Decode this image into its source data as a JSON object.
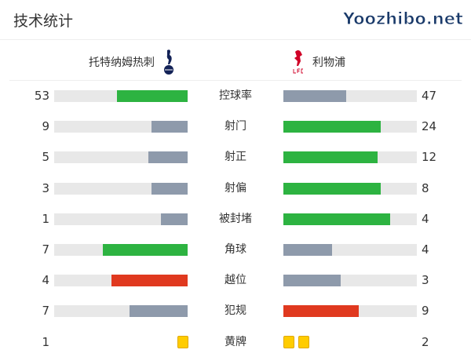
{
  "title": "技术统计",
  "home": {
    "name": "托特纳姆热刺",
    "logo": "tottenham-crest"
  },
  "away": {
    "name": "利物浦",
    "logo": "liverpool-crest"
  },
  "colors": {
    "win": "#2db341",
    "lose": "#8e9aab",
    "warn": "#e0391f",
    "track": "#e8e8e8",
    "yellow": "#ffcc00"
  },
  "stats": [
    {
      "label": "控球率",
      "home": "53",
      "away": "47",
      "hc": "win",
      "ac": "lose"
    },
    {
      "label": "射门",
      "home": "9",
      "away": "24",
      "hc": "lose",
      "ac": "win"
    },
    {
      "label": "射正",
      "home": "5",
      "away": "12",
      "hc": "lose",
      "ac": "win"
    },
    {
      "label": "射偏",
      "home": "3",
      "away": "8",
      "hc": "lose",
      "ac": "win"
    },
    {
      "label": "被封堵",
      "home": "1",
      "away": "4",
      "hc": "lose",
      "ac": "win"
    },
    {
      "label": "角球",
      "home": "7",
      "away": "4",
      "hc": "win",
      "ac": "lose"
    },
    {
      "label": "越位",
      "home": "4",
      "away": "3",
      "hc": "warn",
      "ac": "lose"
    },
    {
      "label": "犯规",
      "home": "7",
      "away": "9",
      "hc": "lose",
      "ac": "warn"
    }
  ],
  "yellow": {
    "label": "黄牌",
    "home": "1",
    "away": "2"
  },
  "watermark": "Yoozhibo.net"
}
